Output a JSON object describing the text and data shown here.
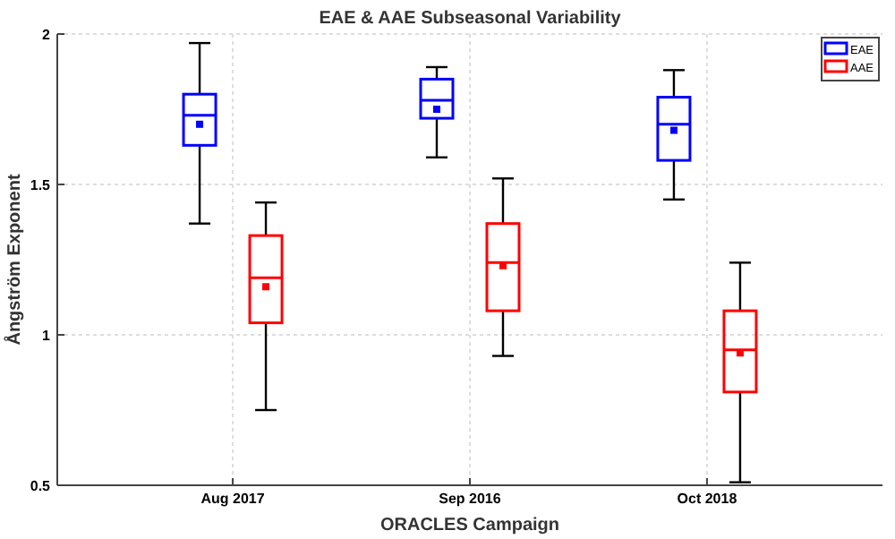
{
  "chart_data": {
    "type": "box",
    "title": "EAE & AAE Subseasonal Variability",
    "xlabel": "ORACLES Campaign",
    "ylabel": "Ångström Exponent",
    "categories": [
      "Aug 2017",
      "Sep 2016",
      "Oct 2018"
    ],
    "series": [
      {
        "name": "EAE",
        "color": "#0000ff",
        "boxes": [
          {
            "low": 1.37,
            "q1": 1.63,
            "median": 1.73,
            "q3": 1.8,
            "high": 1.97,
            "mean": 1.7
          },
          {
            "low": 1.59,
            "q1": 1.72,
            "median": 1.78,
            "q3": 1.85,
            "high": 1.89,
            "mean": 1.75
          },
          {
            "low": 1.45,
            "q1": 1.58,
            "median": 1.7,
            "q3": 1.79,
            "high": 1.88,
            "mean": 1.68
          }
        ]
      },
      {
        "name": "AAE",
        "color": "#ff0000",
        "boxes": [
          {
            "low": 0.75,
            "q1": 1.04,
            "median": 1.19,
            "q3": 1.33,
            "high": 1.44,
            "mean": 1.16
          },
          {
            "low": 0.93,
            "q1": 1.08,
            "median": 1.24,
            "q3": 1.37,
            "high": 1.52,
            "mean": 1.23
          },
          {
            "low": 0.51,
            "q1": 0.81,
            "median": 0.95,
            "q3": 1.08,
            "high": 1.24,
            "mean": 0.94
          }
        ]
      }
    ],
    "ylim": [
      0.5,
      2
    ],
    "yticks": [
      0.5,
      1,
      1.5,
      2
    ],
    "grid": true,
    "legend": "top right"
  }
}
